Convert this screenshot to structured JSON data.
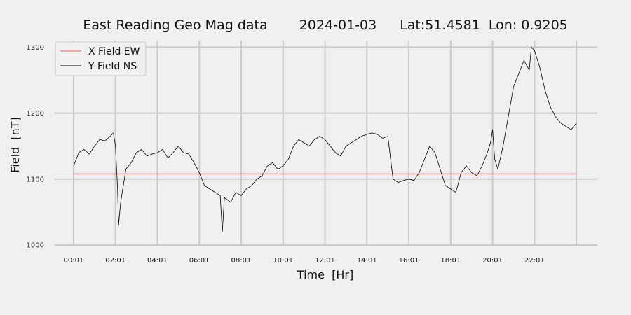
{
  "chart_data": {
    "type": "line",
    "title": "East Reading Geo Mag data",
    "title_date": "2024-01-03",
    "title_location": "Lat:51.4581  Lon: 0.9205",
    "xlabel": "Time  [Hr]",
    "ylabel": "Field  [nT]",
    "x_unit": "hours",
    "xlim": [
      -0.9,
      25.0
    ],
    "ylim": [
      1000,
      1310
    ],
    "x_ticks": [
      {
        "x": 0,
        "label": "00:01"
      },
      {
        "x": 2,
        "label": "02:01"
      },
      {
        "x": 4,
        "label": "04:01"
      },
      {
        "x": 6,
        "label": "06:01"
      },
      {
        "x": 8,
        "label": "08:01"
      },
      {
        "x": 10,
        "label": "10:01"
      },
      {
        "x": 12,
        "label": "12:01"
      },
      {
        "x": 14,
        "label": "14:01"
      },
      {
        "x": 16,
        "label": "16:01"
      },
      {
        "x": 18,
        "label": "18:01"
      },
      {
        "x": 20,
        "label": "20:01"
      },
      {
        "x": 22,
        "label": "22:01"
      }
    ],
    "extra_gridline_x": 24,
    "y_ticks": [
      1000,
      1100,
      1200,
      1300
    ],
    "grid": true,
    "legend_position": "top-left",
    "series": [
      {
        "name": "X Field EW",
        "color": "#e8605a",
        "x": [
          0,
          24
        ],
        "y": [
          1108,
          1108
        ]
      },
      {
        "name": "Y Field NS",
        "color": "#000000",
        "x": [
          0,
          0.25,
          0.5,
          0.75,
          1.0,
          1.25,
          1.5,
          1.75,
          1.9,
          2.0,
          2.1,
          2.15,
          2.25,
          2.5,
          2.75,
          3.0,
          3.25,
          3.5,
          3.75,
          4.0,
          4.25,
          4.5,
          4.75,
          5.0,
          5.25,
          5.5,
          5.75,
          6.0,
          6.25,
          6.5,
          6.75,
          7.0,
          7.1,
          7.2,
          7.5,
          7.75,
          8.0,
          8.25,
          8.5,
          8.75,
          9.0,
          9.25,
          9.5,
          9.75,
          10.0,
          10.25,
          10.5,
          10.75,
          11.0,
          11.25,
          11.5,
          11.75,
          12.0,
          12.25,
          12.5,
          12.75,
          13.0,
          13.25,
          13.5,
          13.75,
          14.0,
          14.25,
          14.5,
          14.75,
          15.0,
          15.25,
          15.5,
          15.75,
          16.0,
          16.25,
          16.5,
          16.75,
          17.0,
          17.25,
          17.5,
          17.75,
          18.0,
          18.25,
          18.5,
          18.75,
          19.0,
          19.25,
          19.5,
          19.75,
          19.9,
          20.0,
          20.1,
          20.25,
          20.5,
          20.75,
          21.0,
          21.25,
          21.5,
          21.75,
          21.85,
          22.0,
          22.25,
          22.5,
          22.75,
          23.0,
          23.25,
          23.5,
          23.75,
          24.0
        ],
        "y": [
          1120,
          1140,
          1145,
          1138,
          1150,
          1160,
          1158,
          1165,
          1170,
          1150,
          1085,
          1030,
          1065,
          1115,
          1125,
          1140,
          1145,
          1135,
          1138,
          1140,
          1145,
          1132,
          1140,
          1150,
          1140,
          1138,
          1125,
          1110,
          1090,
          1085,
          1080,
          1075,
          1020,
          1072,
          1065,
          1080,
          1075,
          1085,
          1090,
          1100,
          1105,
          1120,
          1125,
          1115,
          1120,
          1130,
          1150,
          1160,
          1155,
          1150,
          1160,
          1165,
          1160,
          1150,
          1140,
          1135,
          1150,
          1155,
          1160,
          1165,
          1168,
          1170,
          1168,
          1162,
          1165,
          1100,
          1095,
          1098,
          1100,
          1098,
          1110,
          1130,
          1150,
          1140,
          1115,
          1090,
          1085,
          1080,
          1110,
          1120,
          1110,
          1105,
          1120,
          1140,
          1155,
          1175,
          1130,
          1115,
          1150,
          1195,
          1240,
          1260,
          1280,
          1265,
          1300,
          1295,
          1270,
          1235,
          1210,
          1195,
          1185,
          1180,
          1175,
          1185
        ]
      }
    ]
  }
}
